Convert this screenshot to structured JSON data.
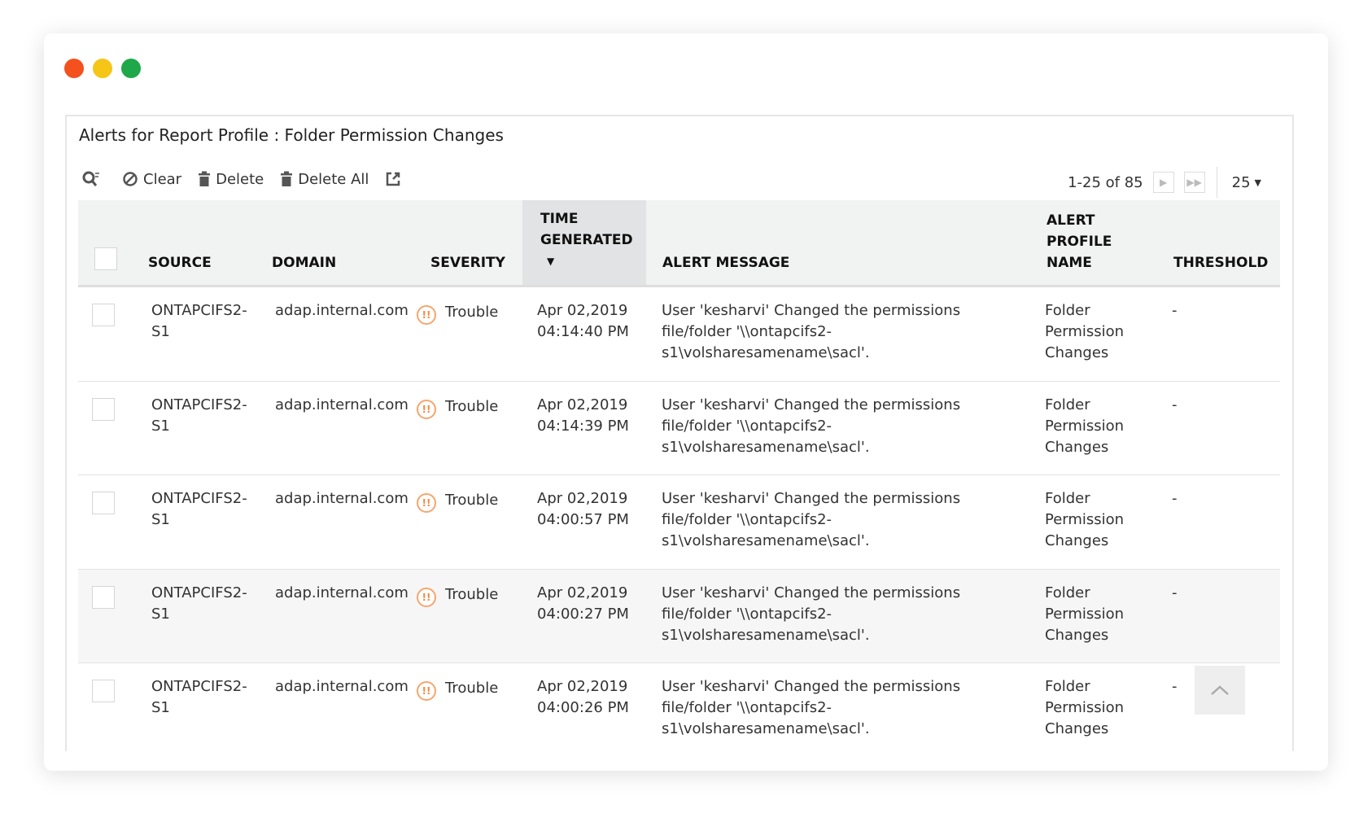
{
  "window": {
    "dot_colors": [
      "#f4511e",
      "#f5c518",
      "#1ea84a"
    ]
  },
  "title": "Alerts for Report Profile : Folder Permission Changes",
  "toolbar": {
    "clear": "Clear",
    "delete": "Delete",
    "delete_all": "Delete All"
  },
  "pager": {
    "range": "1-25 of 85",
    "page_size": "25"
  },
  "columns": {
    "source": "SOURCE",
    "domain": "DOMAIN",
    "severity": "SEVERITY",
    "time_l1": "TIME",
    "time_l2": "GENERATED",
    "message": "ALERT MESSAGE",
    "profile_l1": "ALERT",
    "profile_l2": "PROFILE",
    "profile_l3": "NAME",
    "threshold": "THRESHOLD"
  },
  "severity_color": "#f7a56c",
  "rows": [
    {
      "source_l1": "ONTAPCIFS2-",
      "source_l2": "S1",
      "domain": "adap.internal.com",
      "severity": "Trouble",
      "date": "Apr 02,2019",
      "time": "04:14:40 PM",
      "msg_l1": "User 'kesharvi' Changed the permissions",
      "msg_l2": "file/folder '\\\\ontapcifs2-",
      "msg_l3": "s1\\volsharesamename\\sacl'.",
      "profile_l1": "Folder",
      "profile_l2": "Permission",
      "profile_l3": "Changes",
      "threshold": "-"
    },
    {
      "source_l1": "ONTAPCIFS2-",
      "source_l2": "S1",
      "domain": "adap.internal.com",
      "severity": "Trouble",
      "date": "Apr 02,2019",
      "time": "04:14:39 PM",
      "msg_l1": "User 'kesharvi' Changed the permissions",
      "msg_l2": "file/folder '\\\\ontapcifs2-",
      "msg_l3": "s1\\volsharesamename\\sacl'.",
      "profile_l1": "Folder",
      "profile_l2": "Permission",
      "profile_l3": "Changes",
      "threshold": "-"
    },
    {
      "source_l1": "ONTAPCIFS2-",
      "source_l2": "S1",
      "domain": "adap.internal.com",
      "severity": "Trouble",
      "date": "Apr 02,2019",
      "time": "04:00:57 PM",
      "msg_l1": "User 'kesharvi' Changed the permissions",
      "msg_l2": "file/folder '\\\\ontapcifs2-",
      "msg_l3": "s1\\volsharesamename\\sacl'.",
      "profile_l1": "Folder",
      "profile_l2": "Permission",
      "profile_l3": "Changes",
      "threshold": "-"
    },
    {
      "source_l1": "ONTAPCIFS2-",
      "source_l2": "S1",
      "domain": "adap.internal.com",
      "severity": "Trouble",
      "date": "Apr 02,2019",
      "time": "04:00:27 PM",
      "msg_l1": "User 'kesharvi' Changed the permissions",
      "msg_l2": "file/folder '\\\\ontapcifs2-",
      "msg_l3": "s1\\volsharesamename\\sacl'.",
      "profile_l1": "Folder",
      "profile_l2": "Permission",
      "profile_l3": "Changes",
      "threshold": "-"
    },
    {
      "source_l1": "ONTAPCIFS2-",
      "source_l2": "S1",
      "domain": "adap.internal.com",
      "severity": "Trouble",
      "date": "Apr 02,2019",
      "time": "04:00:26 PM",
      "msg_l1": "User 'kesharvi' Changed the permissions",
      "msg_l2": "file/folder '\\\\ontapcifs2-",
      "msg_l3": "s1\\volsharesamename\\sacl'.",
      "profile_l1": "Folder",
      "profile_l2": "Permission",
      "profile_l3": "Changes",
      "threshold": "-"
    }
  ]
}
